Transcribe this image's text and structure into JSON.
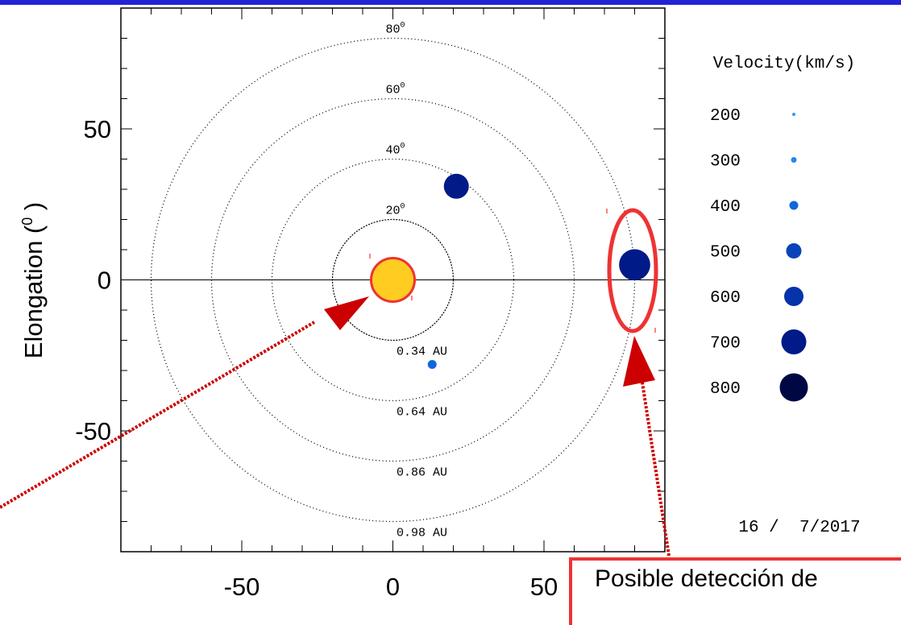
{
  "chart_data": {
    "type": "scatter",
    "title": "",
    "xlabel": "",
    "ylabel": "Elongation (0)",
    "ylabel_main": "Elongation (",
    "ylabel_sup": "0",
    "ylabel_close": ")",
    "xlim": [
      -90,
      90
    ],
    "ylim": [
      -90,
      90
    ],
    "x_ticks": [
      -50,
      0,
      50
    ],
    "y_ticks": [
      50,
      0,
      -50
    ],
    "x_tick_labels": [
      "-50",
      "0",
      "50"
    ],
    "y_tick_labels": [
      "50",
      "0",
      "-50"
    ],
    "rings": [
      {
        "radius": 20,
        "angle_label": "20",
        "distance_label": "0.34 AU"
      },
      {
        "radius": 40,
        "angle_label": "40",
        "distance_label": "0.64 AU"
      },
      {
        "radius": 60,
        "angle_label": "60",
        "distance_label": "0.86 AU"
      },
      {
        "radius": 80,
        "angle_label": "80",
        "distance_label": "0.98 AU"
      }
    ],
    "degree_superscript": "0",
    "sun": {
      "x": 0,
      "y": 0,
      "fill": "#ffcc22",
      "stroke": "#ee3333"
    },
    "points": [
      {
        "x": 21,
        "y": 31,
        "velocity": 700
      },
      {
        "x": 13,
        "y": -28,
        "velocity": 400
      },
      {
        "x": 80,
        "y": 5,
        "velocity": 700
      }
    ],
    "legend": {
      "title": "Velocity(km/s)",
      "placement": "right",
      "entries": [
        {
          "value": "200",
          "color": "#3399ee"
        },
        {
          "value": "300",
          "color": "#2288ee"
        },
        {
          "value": "400",
          "color": "#1166dd"
        },
        {
          "value": "500",
          "color": "#0a44bb"
        },
        {
          "value": "600",
          "color": "#0533aa"
        },
        {
          "value": "700",
          "color": "#001a88"
        },
        {
          "value": "800",
          "color": "#000844"
        }
      ]
    },
    "date": "16 /  7/2017",
    "annotation_text": "Posible detección de",
    "highlight_color": "#ee3333",
    "arrow_color": "#cc0000"
  }
}
